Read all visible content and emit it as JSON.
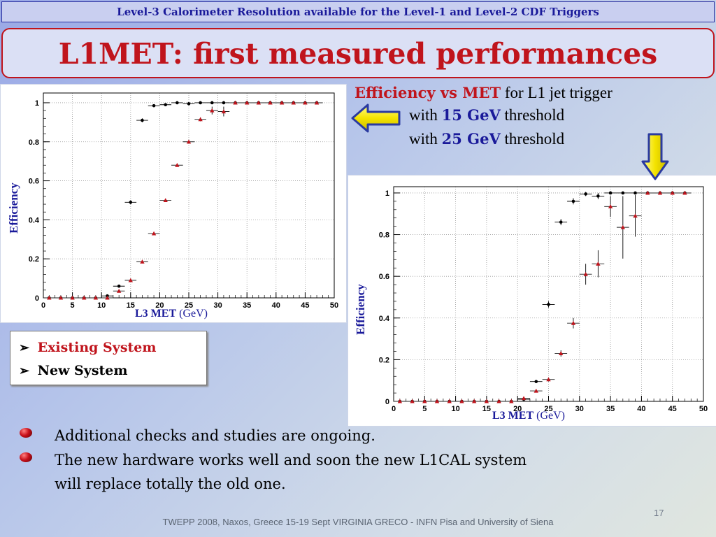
{
  "header": {
    "banner": "Level-3 Calorimeter Resolution available for the Level-1 and Level-2 CDF Triggers"
  },
  "title": "L1MET: first measured performances",
  "description": {
    "line1_a": "Efficiency vs MET",
    "line1_b": "for L1 jet trigger",
    "line2_a": "with",
    "line2_b": "15 GeV",
    "line2_c": "threshold",
    "line3_a": "with",
    "line3_b": "25 GeV",
    "line3_c": "threshold"
  },
  "legend": {
    "existing": "Existing System",
    "new": "New System",
    "existing_color": "#c0141c",
    "new_color": "#000000"
  },
  "bullets": [
    "Additional checks and studies are ongoing.",
    "The new hardware works well and soon the new L1CAL system",
    "will replace  totally the old one."
  ],
  "page_number": "17",
  "footer": "TWEPP 2008, Naxos, Greece 15-19 Sept VIRGINIA GRECO - INFN Pisa and University of Siena",
  "icons": {
    "left_arrow": "left-arrow-icon",
    "down_arrow": "down-arrow-icon",
    "bullet": "bullet-icon"
  },
  "chart_data": [
    {
      "type": "scatter",
      "title": "",
      "xlabel_bold": "L3 MET",
      "xlabel_unit": "(GeV)",
      "ylabel": "Efficiency",
      "xlim": [
        0,
        50
      ],
      "ylim": [
        0,
        1.05
      ],
      "x_ticks": [
        0,
        5,
        10,
        15,
        20,
        25,
        30,
        35,
        40,
        45,
        50
      ],
      "y_ticks": [
        0,
        0.2,
        0.4,
        0.6,
        0.8,
        1
      ],
      "y_tick_labels": [
        "0",
        "0.2",
        "0.4",
        "0.6",
        "0.8",
        "1"
      ],
      "grid": true,
      "series": [
        {
          "marker": "circle",
          "color": "#000000",
          "x": [
            1,
            3,
            5,
            7,
            9,
            11,
            13,
            15,
            17,
            19,
            21,
            23,
            25,
            27,
            29,
            31,
            33,
            35,
            37,
            39,
            41,
            43,
            45,
            47
          ],
          "y": [
            0,
            0,
            0,
            0,
            0,
            0.01,
            0.06,
            0.49,
            0.91,
            0.985,
            0.99,
            1.0,
            0.995,
            1.0,
            1.0,
            1.0,
            1.0,
            1.0,
            1.0,
            1.0,
            1.0,
            1.0,
            1.0,
            1.0
          ],
          "yerr": [
            0,
            0,
            0,
            0,
            0,
            0,
            0.005,
            0.01,
            0.01,
            0.005,
            0.005,
            0.003,
            0.003,
            0,
            0,
            0,
            0,
            0,
            0,
            0,
            0,
            0,
            0,
            0
          ]
        },
        {
          "marker": "triangle",
          "color": "#c0141c",
          "x": [
            1,
            3,
            5,
            7,
            9,
            11,
            13,
            15,
            17,
            19,
            21,
            23,
            25,
            27,
            29,
            31,
            33,
            35,
            37,
            39,
            41,
            43,
            45,
            47
          ],
          "y": [
            0,
            0,
            0,
            0,
            0,
            0,
            0.035,
            0.09,
            0.185,
            0.33,
            0.5,
            0.68,
            0.8,
            0.915,
            0.96,
            0.955,
            1.0,
            1.0,
            1.0,
            1.0,
            1.0,
            1.0,
            1.0,
            1.0
          ],
          "yerr": [
            0,
            0,
            0,
            0,
            0,
            0,
            0.005,
            0.008,
            0.008,
            0.008,
            0.008,
            0.008,
            0.008,
            0.01,
            0.02,
            0.025,
            0,
            0,
            0,
            0,
            0,
            0,
            0,
            0
          ]
        }
      ]
    },
    {
      "type": "scatter",
      "title": "",
      "xlabel_bold": "L3 MET",
      "xlabel_unit": "(GeV)",
      "ylabel": "Efficiency",
      "xlim": [
        0,
        50
      ],
      "ylim": [
        0,
        1.03
      ],
      "x_ticks": [
        0,
        5,
        10,
        15,
        20,
        25,
        30,
        35,
        40,
        45,
        50
      ],
      "y_ticks": [
        0,
        0.2,
        0.4,
        0.6,
        0.8,
        1
      ],
      "y_tick_labels": [
        "0",
        "0.2",
        "0.4",
        "0.6",
        "0.8",
        "1"
      ],
      "grid": true,
      "series": [
        {
          "marker": "circle",
          "color": "#000000",
          "x": [
            1,
            3,
            5,
            7,
            9,
            11,
            13,
            15,
            17,
            19,
            21,
            23,
            25,
            27,
            29,
            31,
            33,
            35,
            37,
            39,
            41,
            43,
            45,
            47
          ],
          "y": [
            0,
            0,
            0,
            0,
            0,
            0,
            0,
            0,
            0,
            0,
            0.01,
            0.095,
            0.465,
            0.86,
            0.96,
            0.995,
            0.985,
            1.0,
            1.0,
            1.0,
            1.0,
            1.0,
            1.0,
            1.0
          ],
          "yerr": [
            0,
            0,
            0,
            0,
            0,
            0,
            0,
            0,
            0,
            0,
            0.005,
            0.005,
            0.015,
            0.015,
            0.015,
            0.01,
            0.015,
            0,
            0,
            0,
            0,
            0,
            0,
            0
          ]
        },
        {
          "marker": "triangle",
          "color": "#c0141c",
          "x": [
            1,
            3,
            5,
            7,
            9,
            11,
            13,
            15,
            17,
            19,
            21,
            23,
            25,
            27,
            29,
            31,
            33,
            35,
            37,
            39,
            41,
            43,
            45,
            47
          ],
          "y": [
            0,
            0,
            0,
            0,
            0,
            0,
            0,
            0,
            0,
            0,
            0.015,
            0.05,
            0.105,
            0.23,
            0.375,
            0.61,
            0.66,
            0.935,
            0.835,
            0.89,
            1.0,
            1.0,
            1.0,
            1.0
          ],
          "yerr": [
            0,
            0,
            0,
            0,
            0,
            0,
            0,
            0,
            0,
            0,
            0.005,
            0.008,
            0.01,
            0.015,
            0.025,
            0.05,
            0.065,
            0.05,
            0.15,
            0.1,
            0,
            0,
            0,
            0
          ]
        }
      ]
    }
  ]
}
